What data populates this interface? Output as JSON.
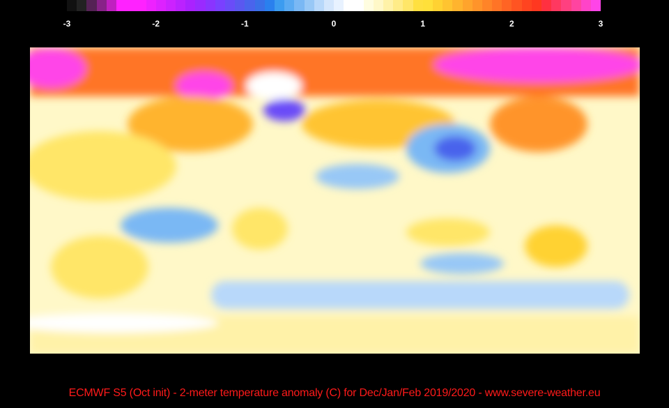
{
  "colorbar": {
    "ticks": [
      "-3",
      "-2",
      "-1",
      "0",
      "1",
      "2",
      "3"
    ],
    "range": [
      -3,
      3
    ],
    "colors": [
      "#111111",
      "#222222",
      "#552255",
      "#882288",
      "#c020c0",
      "#ff22ff",
      "#ff22ff",
      "#ff22ff",
      "#ee22ff",
      "#dd22ff",
      "#cc22ff",
      "#bb22ff",
      "#aa22ff",
      "#9a2aff",
      "#8a34ff",
      "#7a40ff",
      "#6a4cf8",
      "#5a58f0",
      "#4a64ec",
      "#3a70e8",
      "#2a80ee",
      "#3c9cf0",
      "#5aaaf2",
      "#7ab8f4",
      "#98c8f6",
      "#b8d8fa",
      "#d4e6fc",
      "#e8f2ff",
      "#ffffff",
      "#ffffff",
      "#fffde0",
      "#fff8c8",
      "#fff2a8",
      "#ffec88",
      "#ffe668",
      "#ffe040",
      "#ffe03a",
      "#ffd232",
      "#ffc430",
      "#ffb42e",
      "#ffa42c",
      "#ff942a",
      "#ff8428",
      "#ff7426",
      "#ff6424",
      "#ff5422",
      "#ff4420",
      "#ff3820",
      "#ff3040",
      "#ff3860",
      "#ff4080",
      "#ff44a0",
      "#ff44c8",
      "#ff44e8"
    ]
  },
  "map": {
    "variable": "2-meter temperature anomaly",
    "colors": {
      "strong_warm": "#ff44e8",
      "warm": "#ff8428",
      "mild_warm": "#ffe040",
      "slight_warm": "#fff2a8",
      "neutral": "#ffffff",
      "slight_cool": "#b8d8fa",
      "cool": "#7ab8f4",
      "strong_cool": "#4a64ec"
    }
  },
  "caption": "ECMWF S5 (Oct init) -  2-meter temperature anomaly (C)  for Dec/Jan/Feb 2019/2020  -  www.severe-weather.eu"
}
